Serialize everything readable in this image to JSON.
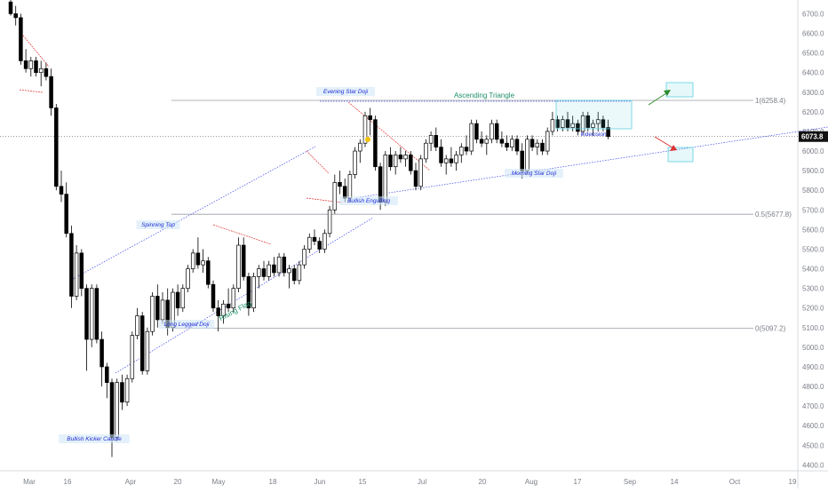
{
  "chart_data": {
    "type": "candlestick",
    "x_tick_labels": [
      "Mar",
      "16",
      "Apr",
      "20",
      "May",
      "18",
      "Jun",
      "15",
      "Jul",
      "20",
      "Aug",
      "17",
      "Sep",
      "14",
      "Oct",
      "19"
    ],
    "y_tick_labels": [
      "6700.0",
      "6600.0",
      "6500.0",
      "6400.0",
      "6300.0",
      "6200.0",
      "6100.0",
      "6000.0",
      "5900.0",
      "5800.0",
      "5700.0",
      "5600.0",
      "5500.0",
      "5400.0",
      "5300.0",
      "5200.0",
      "5100.0",
      "5000.0",
      "4900.0",
      "4800.0",
      "4700.0",
      "4600.0",
      "4500.0",
      "4400.0"
    ],
    "y_ticks": [
      6700,
      6600,
      6500,
      6400,
      6300,
      6200,
      6100,
      6000,
      5900,
      5800,
      5700,
      5600,
      5500,
      5400,
      5300,
      5200,
      5100,
      5000,
      4900,
      4800,
      4700,
      4600,
      4500,
      4400
    ],
    "ylim": [
      4360,
      6780
    ],
    "last_price": "6073.8",
    "fib_levels": [
      {
        "value": 6258.4,
        "label": "1(6258.4)"
      },
      {
        "value": 5677.8,
        "label": "0.5(5677.8)"
      },
      {
        "value": 5097.2,
        "label": "0(5097.2)"
      }
    ],
    "annotations": {
      "ascending_triangle": "Ascending Triangle",
      "rising_flag": "Rising Flag",
      "indecision": "Indecision",
      "evening_star_doji": "Evening Star Doji",
      "morning_star_doji": "Morning Star Doji",
      "bullish_engulfing": "Bullish Engulfing",
      "spinning_top": "Spinning Top",
      "long_legged_doji": "Long Legged Doji",
      "bullish_kicker": "Bullish Kicker Candle"
    },
    "colors": {
      "up": "#ffffff",
      "down": "#000000",
      "wick": "#000000",
      "channel_line": "#3d47e8",
      "fib_line": "#9a9ea6",
      "pattern_text": "#1f8f6a",
      "label_text": "#1f2bd6",
      "bull_arrow": "#2e8b2e",
      "bear_arrow": "#e03030",
      "box": "#5fd0e0",
      "down_trend": "#e03030",
      "marker": "#f2c200"
    },
    "candles": [
      {
        "o": 6760,
        "h": 6780,
        "l": 6690,
        "c": 6700
      },
      {
        "o": 6700,
        "h": 6740,
        "l": 6640,
        "c": 6680
      },
      {
        "o": 6680,
        "h": 6700,
        "l": 6440,
        "c": 6460
      },
      {
        "o": 6460,
        "h": 6520,
        "l": 6400,
        "c": 6420
      },
      {
        "o": 6420,
        "h": 6480,
        "l": 6380,
        "c": 6460
      },
      {
        "o": 6460,
        "h": 6480,
        "l": 6380,
        "c": 6400
      },
      {
        "o": 6400,
        "h": 6460,
        "l": 6330,
        "c": 6420
      },
      {
        "o": 6420,
        "h": 6450,
        "l": 6360,
        "c": 6380
      },
      {
        "o": 6380,
        "h": 6420,
        "l": 6180,
        "c": 6220
      },
      {
        "o": 6220,
        "h": 6240,
        "l": 5800,
        "c": 5820
      },
      {
        "o": 5820,
        "h": 5900,
        "l": 5740,
        "c": 5780
      },
      {
        "o": 5780,
        "h": 5840,
        "l": 5560,
        "c": 5580
      },
      {
        "o": 5580,
        "h": 5620,
        "l": 5200,
        "c": 5260
      },
      {
        "o": 5260,
        "h": 5520,
        "l": 5240,
        "c": 5480
      },
      {
        "o": 5480,
        "h": 5500,
        "l": 5260,
        "c": 5300
      },
      {
        "o": 5300,
        "h": 5320,
        "l": 4880,
        "c": 5040
      },
      {
        "o": 5040,
        "h": 5320,
        "l": 5000,
        "c": 5300
      },
      {
        "o": 5300,
        "h": 5320,
        "l": 5020,
        "c": 5040
      },
      {
        "o": 5040,
        "h": 5080,
        "l": 4800,
        "c": 4900
      },
      {
        "o": 4900,
        "h": 4920,
        "l": 4740,
        "c": 4820
      },
      {
        "o": 4820,
        "h": 4840,
        "l": 4440,
        "c": 4540
      },
      {
        "o": 4540,
        "h": 4840,
        "l": 4520,
        "c": 4820
      },
      {
        "o": 4820,
        "h": 4860,
        "l": 4680,
        "c": 4720
      },
      {
        "o": 4720,
        "h": 4860,
        "l": 4700,
        "c": 4840
      },
      {
        "o": 4840,
        "h": 5080,
        "l": 4820,
        "c": 5060
      },
      {
        "o": 5060,
        "h": 5200,
        "l": 5040,
        "c": 5160
      },
      {
        "o": 5160,
        "h": 5180,
        "l": 4860,
        "c": 4880
      },
      {
        "o": 4880,
        "h": 5100,
        "l": 4860,
        "c": 5080
      },
      {
        "o": 5080,
        "h": 5280,
        "l": 5060,
        "c": 5260
      },
      {
        "o": 5260,
        "h": 5320,
        "l": 5100,
        "c": 5140
      },
      {
        "o": 5140,
        "h": 5280,
        "l": 5120,
        "c": 5240
      },
      {
        "o": 5240,
        "h": 5300,
        "l": 5060,
        "c": 5100
      },
      {
        "o": 5100,
        "h": 5300,
        "l": 5080,
        "c": 5280
      },
      {
        "o": 5280,
        "h": 5320,
        "l": 5160,
        "c": 5200
      },
      {
        "o": 5200,
        "h": 5320,
        "l": 5180,
        "c": 5300
      },
      {
        "o": 5300,
        "h": 5420,
        "l": 5280,
        "c": 5400
      },
      {
        "o": 5400,
        "h": 5500,
        "l": 5380,
        "c": 5480
      },
      {
        "o": 5480,
        "h": 5560,
        "l": 5400,
        "c": 5420
      },
      {
        "o": 5420,
        "h": 5500,
        "l": 5380,
        "c": 5440
      },
      {
        "o": 5440,
        "h": 5460,
        "l": 5300,
        "c": 5320
      },
      {
        "o": 5320,
        "h": 5340,
        "l": 5180,
        "c": 5200
      },
      {
        "o": 5200,
        "h": 5240,
        "l": 5080,
        "c": 5160
      },
      {
        "o": 5160,
        "h": 5240,
        "l": 5120,
        "c": 5220
      },
      {
        "o": 5220,
        "h": 5300,
        "l": 5180,
        "c": 5200
      },
      {
        "o": 5200,
        "h": 5320,
        "l": 5180,
        "c": 5300
      },
      {
        "o": 5300,
        "h": 5560,
        "l": 5280,
        "c": 5520
      },
      {
        "o": 5520,
        "h": 5560,
        "l": 5340,
        "c": 5360
      },
      {
        "o": 5360,
        "h": 5380,
        "l": 5160,
        "c": 5200
      },
      {
        "o": 5200,
        "h": 5380,
        "l": 5180,
        "c": 5360
      },
      {
        "o": 5360,
        "h": 5420,
        "l": 5300,
        "c": 5400
      },
      {
        "o": 5400,
        "h": 5440,
        "l": 5340,
        "c": 5360
      },
      {
        "o": 5360,
        "h": 5440,
        "l": 5340,
        "c": 5420
      },
      {
        "o": 5420,
        "h": 5460,
        "l": 5360,
        "c": 5380
      },
      {
        "o": 5380,
        "h": 5480,
        "l": 5360,
        "c": 5460
      },
      {
        "o": 5460,
        "h": 5480,
        "l": 5360,
        "c": 5380
      },
      {
        "o": 5380,
        "h": 5420,
        "l": 5300,
        "c": 5400
      },
      {
        "o": 5400,
        "h": 5420,
        "l": 5320,
        "c": 5340
      },
      {
        "o": 5340,
        "h": 5440,
        "l": 5320,
        "c": 5420
      },
      {
        "o": 5420,
        "h": 5520,
        "l": 5400,
        "c": 5500
      },
      {
        "o": 5500,
        "h": 5580,
        "l": 5480,
        "c": 5560
      },
      {
        "o": 5560,
        "h": 5600,
        "l": 5520,
        "c": 5540
      },
      {
        "o": 5540,
        "h": 5560,
        "l": 5480,
        "c": 5500
      },
      {
        "o": 5500,
        "h": 5600,
        "l": 5480,
        "c": 5580
      },
      {
        "o": 5580,
        "h": 5720,
        "l": 5560,
        "c": 5700
      },
      {
        "o": 5700,
        "h": 5880,
        "l": 5680,
        "c": 5840
      },
      {
        "o": 5840,
        "h": 5900,
        "l": 5780,
        "c": 5820
      },
      {
        "o": 5820,
        "h": 5860,
        "l": 5740,
        "c": 5760
      },
      {
        "o": 5760,
        "h": 5900,
        "l": 5740,
        "c": 5880
      },
      {
        "o": 5880,
        "h": 6020,
        "l": 5860,
        "c": 6000
      },
      {
        "o": 6000,
        "h": 6060,
        "l": 5940,
        "c": 6040
      },
      {
        "o": 6040,
        "h": 6200,
        "l": 6020,
        "c": 6180
      },
      {
        "o": 6180,
        "h": 6220,
        "l": 6080,
        "c": 6160
      },
      {
        "o": 6160,
        "h": 6180,
        "l": 5900,
        "c": 5920
      },
      {
        "o": 5920,
        "h": 5940,
        "l": 5700,
        "c": 5740
      },
      {
        "o": 5740,
        "h": 6000,
        "l": 5720,
        "c": 5980
      },
      {
        "o": 5980,
        "h": 6020,
        "l": 5900,
        "c": 5920
      },
      {
        "o": 5920,
        "h": 6000,
        "l": 5880,
        "c": 5980
      },
      {
        "o": 5980,
        "h": 6020,
        "l": 5940,
        "c": 5960
      },
      {
        "o": 5960,
        "h": 6000,
        "l": 5920,
        "c": 5980
      },
      {
        "o": 5980,
        "h": 6000,
        "l": 5880,
        "c": 5900
      },
      {
        "o": 5900,
        "h": 5940,
        "l": 5800,
        "c": 5820
      },
      {
        "o": 5820,
        "h": 5980,
        "l": 5800,
        "c": 5960
      },
      {
        "o": 5960,
        "h": 6060,
        "l": 5940,
        "c": 6040
      },
      {
        "o": 6040,
        "h": 6100,
        "l": 6000,
        "c": 6080
      },
      {
        "o": 6080,
        "h": 6120,
        "l": 6000,
        "c": 6020
      },
      {
        "o": 6020,
        "h": 6060,
        "l": 5920,
        "c": 5940
      },
      {
        "o": 5940,
        "h": 5980,
        "l": 5880,
        "c": 5960
      },
      {
        "o": 5960,
        "h": 6020,
        "l": 5920,
        "c": 5940
      },
      {
        "o": 5940,
        "h": 6000,
        "l": 5900,
        "c": 5980
      },
      {
        "o": 5980,
        "h": 6040,
        "l": 5940,
        "c": 6020
      },
      {
        "o": 6020,
        "h": 6080,
        "l": 5980,
        "c": 6000
      },
      {
        "o": 6000,
        "h": 6160,
        "l": 5980,
        "c": 6140
      },
      {
        "o": 6140,
        "h": 6160,
        "l": 6040,
        "c": 6060
      },
      {
        "o": 6060,
        "h": 6100,
        "l": 6020,
        "c": 6040
      },
      {
        "o": 6040,
        "h": 6080,
        "l": 5980,
        "c": 6060
      },
      {
        "o": 6060,
        "h": 6160,
        "l": 6040,
        "c": 6140
      },
      {
        "o": 6140,
        "h": 6160,
        "l": 6040,
        "c": 6060
      },
      {
        "o": 6060,
        "h": 6100,
        "l": 6020,
        "c": 6040
      },
      {
        "o": 6040,
        "h": 6080,
        "l": 6000,
        "c": 6020
      },
      {
        "o": 6020,
        "h": 6080,
        "l": 6000,
        "c": 6060
      },
      {
        "o": 6060,
        "h": 6080,
        "l": 5980,
        "c": 6000
      },
      {
        "o": 6000,
        "h": 6040,
        "l": 5860,
        "c": 5900
      },
      {
        "o": 5900,
        "h": 6080,
        "l": 5880,
        "c": 6060
      },
      {
        "o": 6060,
        "h": 6080,
        "l": 6000,
        "c": 6020
      },
      {
        "o": 6020,
        "h": 6060,
        "l": 5980,
        "c": 6040
      },
      {
        "o": 6040,
        "h": 6060,
        "l": 5980,
        "c": 6000
      },
      {
        "o": 6000,
        "h": 6120,
        "l": 5980,
        "c": 6100
      },
      {
        "o": 6100,
        "h": 6200,
        "l": 6080,
        "c": 6160
      },
      {
        "o": 6160,
        "h": 6180,
        "l": 6100,
        "c": 6120
      },
      {
        "o": 6120,
        "h": 6180,
        "l": 6100,
        "c": 6160
      },
      {
        "o": 6160,
        "h": 6200,
        "l": 6100,
        "c": 6120
      },
      {
        "o": 6120,
        "h": 6180,
        "l": 6100,
        "c": 6140
      },
      {
        "o": 6140,
        "h": 6160,
        "l": 6080,
        "c": 6100
      },
      {
        "o": 6100,
        "h": 6200,
        "l": 6080,
        "c": 6180
      },
      {
        "o": 6180,
        "h": 6200,
        "l": 6100,
        "c": 6120
      },
      {
        "o": 6120,
        "h": 6160,
        "l": 6080,
        "c": 6140
      },
      {
        "o": 6140,
        "h": 6200,
        "l": 6100,
        "c": 6160
      },
      {
        "o": 6160,
        "h": 6180,
        "l": 6100,
        "c": 6120
      },
      {
        "o": 6120,
        "h": 6160,
        "l": 6060,
        "c": 6074
      }
    ]
  }
}
